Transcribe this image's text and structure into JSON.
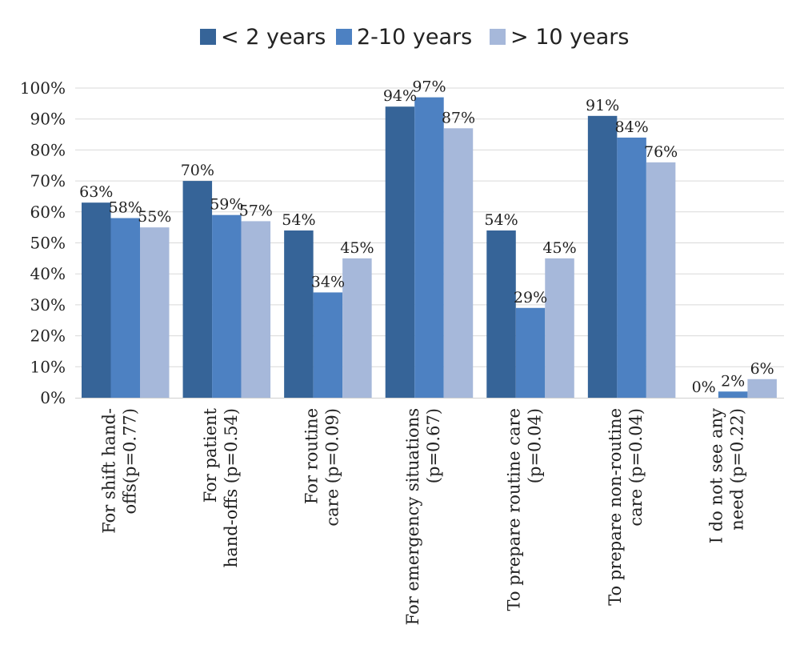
{
  "chart_data": {
    "type": "bar",
    "title": "",
    "xlabel": "",
    "ylabel": "",
    "ylim": [
      0,
      100
    ],
    "grid": true,
    "legend_position": "top",
    "y_ticks": [
      "0%",
      "10%",
      "20%",
      "30%",
      "40%",
      "50%",
      "60%",
      "70%",
      "80%",
      "90%",
      "100%"
    ],
    "categories": [
      [
        "For shift hand-",
        "offs(p=0.77)"
      ],
      [
        "For patient",
        "hand-offs (p=0.54)"
      ],
      [
        "For routine",
        "care (p=0.09)"
      ],
      [
        "For emergency situations",
        "(p=0.67)"
      ],
      [
        "To prepare routine care",
        "(p=0.04)"
      ],
      [
        "To prepare non-routine",
        "care (p=0.04)"
      ],
      [
        "I do not see any",
        "need (p=0.22)"
      ]
    ],
    "series": [
      {
        "name": "< 2 years",
        "color": "#366498",
        "values": [
          63,
          70,
          54,
          94,
          54,
          91,
          0
        ],
        "labels": [
          "63%",
          "70%",
          "54%",
          "94%",
          "54%",
          "91%",
          "0%"
        ]
      },
      {
        "name": "2-10 years",
        "color": "#4d81c2",
        "values": [
          58,
          59,
          34,
          97,
          29,
          84,
          2
        ],
        "labels": [
          "58%",
          "59%",
          "34%",
          "97%",
          "29%",
          "84%",
          "2%"
        ]
      },
      {
        "name": "> 10 years",
        "color": "#a6b8da",
        "values": [
          55,
          57,
          45,
          87,
          45,
          76,
          6
        ],
        "labels": [
          "55%",
          "57%",
          "45%",
          "87%",
          "45%",
          "76%",
          "6%"
        ]
      }
    ]
  }
}
